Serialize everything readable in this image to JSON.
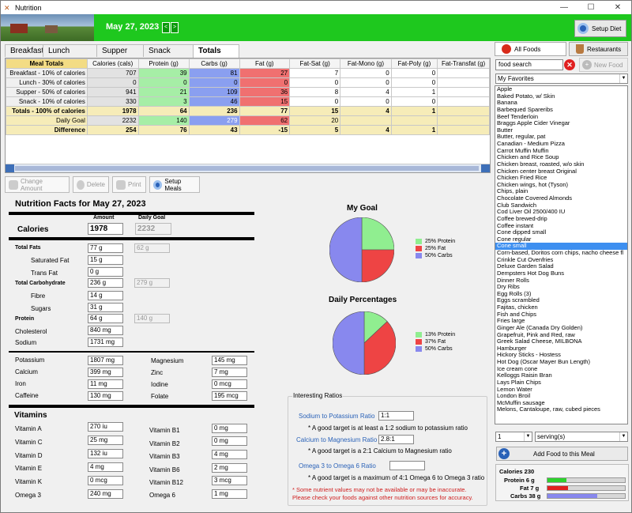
{
  "window": {
    "title": "Nutrition",
    "controls": [
      "—",
      "☐",
      "✕"
    ]
  },
  "header": {
    "date": "May 27, 2023",
    "prev": "<",
    "next": ">",
    "setup_diet": "Setup Diet"
  },
  "tabs": [
    "Breakfast",
    "Lunch",
    "Supper",
    "Snack",
    "Totals"
  ],
  "active_tab": "Totals",
  "grid": {
    "corner": "Meal Totals",
    "columns": [
      "Calories  (cals)",
      "Protein  (g)",
      "Carbs  (g)",
      "Fat  (g)",
      "Fat-Sat  (g)",
      "Fat-Mono  (g)",
      "Fat-Poly  (g)",
      "Fat-Transfat  (g)"
    ],
    "rows": [
      {
        "label": "Breakfast - 10% of calories",
        "values": [
          "707",
          "39",
          "81",
          "27",
          "7",
          "0",
          "0",
          ""
        ]
      },
      {
        "label": "Lunch - 30% of calories",
        "values": [
          "0",
          "0",
          "0",
          "0",
          "0",
          "0",
          "0",
          ""
        ]
      },
      {
        "label": "Supper - 50% of calories",
        "values": [
          "941",
          "21",
          "109",
          "36",
          "8",
          "4",
          "1",
          ""
        ]
      },
      {
        "label": "Snack - 10% of calories",
        "values": [
          "330",
          "3",
          "46",
          "15",
          "0",
          "0",
          "0",
          ""
        ]
      },
      {
        "label": "Totals - 100% of calories",
        "values": [
          "1978",
          "64",
          "236",
          "77",
          "15",
          "4",
          "1",
          ""
        ]
      },
      {
        "label": "Daily Goal",
        "values": [
          "2232",
          "140",
          "279",
          "62",
          "20",
          "",
          "",
          ""
        ]
      },
      {
        "label": "Difference",
        "values": [
          "254",
          "76",
          "43",
          "-15",
          "5",
          "4",
          "1",
          ""
        ]
      }
    ]
  },
  "toolbar": {
    "change_amount": "Change Amount",
    "delete": "Delete",
    "print": "Print",
    "setup_meals": "Setup Meals"
  },
  "facts": {
    "title": "Nutrition Facts for May 27, 2023",
    "amount_label": "Amount",
    "goal_label": "Daily Goal",
    "calories_label": "Calories",
    "calories": "1978",
    "calories_goal": "2232",
    "total_fats_label": "Total Fats",
    "total_fats": "77 g",
    "total_fats_goal": "62 g",
    "sat_fat_label": "Saturated Fat",
    "sat_fat": "15 g",
    "trans_fat_label": "Trans Fat",
    "trans_fat": "0 g",
    "carb_label": "Total Carbohydrate",
    "carb": "236 g",
    "carb_goal": "279 g",
    "fibre_label": "Fibre",
    "fibre": "14 g",
    "sugars_label": "Sugars",
    "sugars": "31 g",
    "protein_label": "Protein",
    "protein": "64 g",
    "protein_goal": "140 g",
    "chol_label": "Cholesterol",
    "chol": "840 mg",
    "sodium_label": "Sodium",
    "sodium": "1731 mg",
    "potassium_label": "Potassium",
    "potassium": "1807 mg",
    "calcium_label": "Calcium",
    "calcium": "399 mg",
    "iron_label": "Iron",
    "iron": "11 mg",
    "caffeine_label": "Caffeine",
    "caffeine": "130 mg",
    "magnesium_label": "Magnesium",
    "magnesium": "145 mg",
    "zinc_label": "Zinc",
    "zinc": "7 mg",
    "iodine_label": "Iodine",
    "iodine": "0 mcg",
    "folate_label": "Folate",
    "folate": "195 mcg",
    "vitamins_label": "Vitamins",
    "vita_label": "Vitamin A",
    "vita": "270 iu",
    "vitc_label": "Vitamin C",
    "vitc": "25 mg",
    "vitd_label": "Vitamin D",
    "vitd": "132 iu",
    "vite_label": "Vitamin E",
    "vite": "4 mg",
    "vitk_label": "Vitamin K",
    "vitk": "0 mcg",
    "omega3_label": "Omega 3",
    "omega3": "240 mg",
    "b1_label": "Vitamin B1",
    "b1": "0 mg",
    "b2_label": "Vitamin B2",
    "b2": "0 mg",
    "b3_label": "Vitamin B3",
    "b3": "4 mg",
    "b6_label": "Vitamin B6",
    "b6": "2 mg",
    "b12_label": "Vitamin B12",
    "b12": "3 mcg",
    "omega6_label": "Omega 6",
    "omega6": "1 mg"
  },
  "chart_data": [
    {
      "type": "pie",
      "title": "My Goal",
      "labels": [
        "25% Protein",
        "25% Fat",
        "50% Carbs"
      ],
      "values": [
        25,
        25,
        50
      ],
      "colors": [
        "#90ee90",
        "#ee4444",
        "#8888ee"
      ]
    },
    {
      "type": "pie",
      "title": "Daily Percentages",
      "labels": [
        "13% Protein",
        "37% Fat",
        "50% Carbs"
      ],
      "values": [
        13,
        37,
        50
      ],
      "colors": [
        "#90ee90",
        "#ee4444",
        "#8888ee"
      ]
    }
  ],
  "ratios": {
    "legend": "Interesting Ratios",
    "na_k_label": "Sodium to Potassium Ratio",
    "na_k": "1:1",
    "na_k_note": "* A good target is at least a 1:2 sodium to potassium ratio",
    "ca_mg_label": "Calcium to Magnesium Ratio",
    "ca_mg": "2.8:1",
    "ca_mg_note": "* A good target is a 2:1 Calcium to Magnesium ratio",
    "o3_o6_label": "Omega 3 to Omega 6 Ratio",
    "o3_o6": "",
    "o3_o6_note": "* A good target is a maximum of 4:1 Omega 6 to Omega 3 ratio",
    "warn1": "* Some nutrient values may not be available or may be inaccurate.",
    "warn2": "Please check your foods against other nutrition sources for accuracy."
  },
  "right": {
    "all_foods": "All Foods",
    "restaurants": "Restaurants",
    "search_placeholder": "food search",
    "new_food": "New Food",
    "category": "My Favorites",
    "foods": [
      "Apple",
      "Baked Potato, w/ Skin",
      "Banana",
      "Barbequed Spareribs",
      "Beef Tenderloin",
      "Braggs Apple Cider Vinegar",
      "Butter",
      "Butter, regular, pat",
      "Canadian - Medium Pizza",
      "Carrot Muffin Muffin",
      "Chicken and Rice Soup",
      "Chicken breast, roasted, w/o skin",
      "Chicken center breast Original",
      "Chicken Fried Rice",
      "Chicken wings, hot (Tyson)",
      "Chips, plain",
      "Chocolate Covered Almonds",
      "Club Sandwich",
      "Cod Liver Oil 2500/400 IU",
      "Coffee brewed-drip",
      "Coffee instant",
      "Cone dipped small",
      "Cone regular",
      "Cone small",
      "Corn-based, Doritos corn chips, nacho cheese fl",
      "Crinkle Cut Ovenfries",
      "Deluxe Garden Salad",
      "Dempsters Hot Dog Buns",
      "Dinner Rolls",
      "Dry Ribs",
      "Egg Rolls (3)",
      "Eggs scrambled",
      "Fajitas, chicken",
      "Fish and Chips",
      "Fries large",
      "Ginger Ale (Canada Dry Golden)",
      "Grapefruit, Pink and Red, raw",
      "Greek Salad Cheese, MILBONA",
      "Hamburger",
      "Hickory Sticks - Hostess",
      "Hot Dog (Oscar Mayer Bun Length)",
      "Ice cream cone",
      "Kelloggs Raisin Bran",
      "Lays Plain Chips",
      "Lemon Water",
      "London Broil",
      "McMuffin sausage",
      "Melons, Cantaloupe, raw, cubed pieces"
    ],
    "selected_food": "Cone small",
    "qty": "1",
    "unit": "serving(s)",
    "add_button": "Add Food to this Meal",
    "summary": {
      "calories_label": "Calories 230",
      "protein_label": "Protein 6 g",
      "protein_frac": 0.24,
      "fat_label": "Fat 7 g",
      "fat_frac": 0.27,
      "carbs_label": "Carbs 38 g",
      "carbs_frac": 0.64
    }
  }
}
